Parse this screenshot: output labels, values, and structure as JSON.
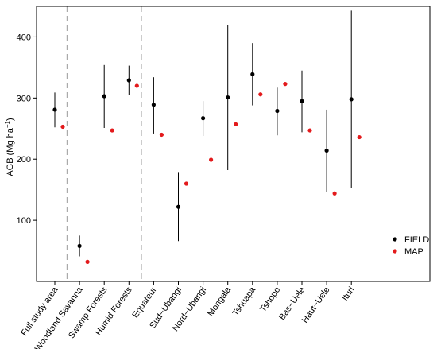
{
  "chart_data": {
    "type": "scatter",
    "ylabel_main": "AGB (Mg ha",
    "ylabel_sup": "−1",
    "ylabel_close": ")",
    "xlabel": "",
    "ylim": [
      0,
      450
    ],
    "yticks": [
      100,
      200,
      300,
      400
    ],
    "categories": [
      "Full study area",
      "Woodland Savanna",
      "Swamp Forests",
      "Humid Forests",
      "Equateur",
      "Sud−Ubangi",
      "Nord−Ubangi",
      "Mongala",
      "Tshuapa",
      "Tshopo",
      "Bas−Uele",
      "Haut−Uele",
      "Ituri"
    ],
    "group_dividers_after": [
      0,
      3
    ],
    "series": [
      {
        "name": "FIELD",
        "color": "#000000",
        "values": [
          281,
          58,
          303,
          329,
          289,
          122,
          267,
          301,
          339,
          279,
          295,
          214,
          298
        ],
        "lower": [
          252,
          41,
          251,
          305,
          242,
          66,
          238,
          182,
          288,
          239,
          244,
          147,
          153
        ],
        "upper": [
          309,
          75,
          354,
          353,
          334,
          179,
          295,
          420,
          390,
          317,
          345,
          281,
          443
        ]
      },
      {
        "name": "MAP",
        "color": "#e31a1c",
        "values": [
          253,
          32,
          247,
          320,
          240,
          160,
          199,
          257,
          306,
          323,
          247,
          144,
          236
        ]
      }
    ],
    "legend": {
      "position": "bottom-right",
      "entries": [
        "FIELD",
        "MAP"
      ]
    },
    "grid": false
  }
}
